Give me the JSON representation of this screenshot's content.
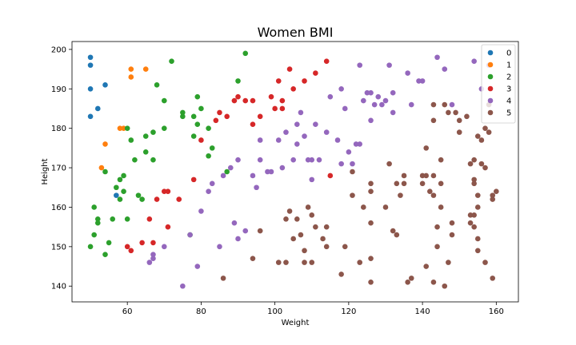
{
  "chart_data": {
    "type": "scatter",
    "title": "Women BMI",
    "xlabel": "Weight",
    "ylabel": "Height",
    "xlim": [
      45,
      166
    ],
    "ylim": [
      136,
      202
    ],
    "xticks": [
      60,
      80,
      100,
      120,
      140,
      160
    ],
    "yticks": [
      140,
      150,
      160,
      170,
      180,
      190,
      200
    ],
    "legend_position": "top-right",
    "series": [
      {
        "name": "0",
        "color": "#1f77b4",
        "points": [
          [
            50,
            198
          ],
          [
            50,
            196
          ],
          [
            50,
            190
          ],
          [
            50,
            183
          ],
          [
            52,
            185
          ],
          [
            54,
            191
          ],
          [
            57,
            163
          ]
        ]
      },
      {
        "name": "1",
        "color": "#ff7f0e",
        "points": [
          [
            53,
            170
          ],
          [
            54,
            176
          ],
          [
            58,
            180
          ],
          [
            59,
            180
          ],
          [
            61,
            195
          ],
          [
            61,
            193
          ],
          [
            65,
            195
          ]
        ]
      },
      {
        "name": "2",
        "color": "#2ca02c",
        "points": [
          [
            50,
            150
          ],
          [
            51,
            153
          ],
          [
            51,
            160
          ],
          [
            52,
            157
          ],
          [
            52,
            156
          ],
          [
            54,
            169
          ],
          [
            54,
            148
          ],
          [
            55,
            151
          ],
          [
            56,
            157
          ],
          [
            57,
            165
          ],
          [
            58,
            167
          ],
          [
            58,
            162
          ],
          [
            59,
            164
          ],
          [
            59,
            168
          ],
          [
            60,
            180
          ],
          [
            60,
            157
          ],
          [
            61,
            177
          ],
          [
            62,
            172
          ],
          [
            63,
            163
          ],
          [
            64,
            162
          ],
          [
            65,
            178
          ],
          [
            65,
            174
          ],
          [
            67,
            179
          ],
          [
            67,
            172
          ],
          [
            68,
            191
          ],
          [
            70,
            187
          ],
          [
            70,
            180
          ],
          [
            72,
            197
          ],
          [
            75,
            184
          ],
          [
            75,
            183
          ],
          [
            78,
            183
          ],
          [
            78,
            178
          ],
          [
            79,
            181
          ],
          [
            79,
            188
          ],
          [
            80,
            185
          ],
          [
            82,
            173
          ],
          [
            82,
            180
          ],
          [
            83,
            175
          ],
          [
            87,
            169
          ],
          [
            90,
            192
          ],
          [
            92,
            199
          ],
          [
            77,
            153
          ]
        ]
      },
      {
        "name": "3",
        "color": "#d62728",
        "points": [
          [
            60,
            150
          ],
          [
            61,
            149
          ],
          [
            64,
            151
          ],
          [
            66,
            157
          ],
          [
            67,
            151
          ],
          [
            68,
            162
          ],
          [
            70,
            164
          ],
          [
            71,
            164
          ],
          [
            71,
            155
          ],
          [
            74,
            162
          ],
          [
            78,
            167
          ],
          [
            80,
            177
          ],
          [
            84,
            182
          ],
          [
            85,
            184
          ],
          [
            87,
            183
          ],
          [
            89,
            187
          ],
          [
            90,
            188
          ],
          [
            92,
            187
          ],
          [
            94,
            187
          ],
          [
            94,
            181
          ],
          [
            96,
            183
          ],
          [
            99,
            188
          ],
          [
            100,
            185
          ],
          [
            101,
            192
          ],
          [
            102,
            187
          ],
          [
            102,
            185
          ],
          [
            104,
            195
          ],
          [
            105,
            190
          ],
          [
            108,
            192
          ],
          [
            111,
            194
          ],
          [
            114,
            197
          ],
          [
            115,
            168
          ]
        ]
      },
      {
        "name": "4",
        "color": "#9467bd",
        "points": [
          [
            66,
            146
          ],
          [
            67,
            148
          ],
          [
            67,
            147
          ],
          [
            70,
            150
          ],
          [
            75,
            140
          ],
          [
            77,
            153
          ],
          [
            79,
            145
          ],
          [
            80,
            159
          ],
          [
            82,
            164
          ],
          [
            83,
            166
          ],
          [
            85,
            150
          ],
          [
            86,
            168
          ],
          [
            88,
            170
          ],
          [
            89,
            156
          ],
          [
            90,
            152
          ],
          [
            90,
            172
          ],
          [
            92,
            154
          ],
          [
            94,
            168
          ],
          [
            95,
            165
          ],
          [
            96,
            172
          ],
          [
            96,
            177
          ],
          [
            98,
            169
          ],
          [
            99,
            169
          ],
          [
            101,
            177
          ],
          [
            102,
            170
          ],
          [
            103,
            179
          ],
          [
            105,
            172
          ],
          [
            106,
            176
          ],
          [
            106,
            181
          ],
          [
            107,
            184
          ],
          [
            108,
            178
          ],
          [
            109,
            172
          ],
          [
            110,
            172
          ],
          [
            110,
            167
          ],
          [
            111,
            181
          ],
          [
            112,
            172
          ],
          [
            114,
            179
          ],
          [
            115,
            188
          ],
          [
            117,
            177
          ],
          [
            118,
            171
          ],
          [
            118,
            190
          ],
          [
            119,
            185
          ],
          [
            120,
            174
          ],
          [
            121,
            171
          ],
          [
            122,
            176
          ],
          [
            123,
            176
          ],
          [
            123,
            196
          ],
          [
            124,
            187
          ],
          [
            125,
            189
          ],
          [
            126,
            189
          ],
          [
            126,
            182
          ],
          [
            127,
            186
          ],
          [
            128,
            188
          ],
          [
            129,
            186
          ],
          [
            130,
            187
          ],
          [
            131,
            196
          ],
          [
            132,
            184
          ],
          [
            132,
            189
          ],
          [
            136,
            194
          ],
          [
            137,
            186
          ],
          [
            139,
            192
          ],
          [
            140,
            192
          ],
          [
            144,
            198
          ],
          [
            146,
            195
          ],
          [
            148,
            186
          ],
          [
            154,
            197
          ],
          [
            156,
            190
          ],
          [
            158,
            196
          ]
        ]
      },
      {
        "name": "5",
        "color": "#8c564b",
        "points": [
          [
            86,
            142
          ],
          [
            94,
            147
          ],
          [
            96,
            154
          ],
          [
            101,
            146
          ],
          [
            103,
            146
          ],
          [
            103,
            157
          ],
          [
            104,
            159
          ],
          [
            105,
            152
          ],
          [
            106,
            157
          ],
          [
            107,
            153
          ],
          [
            108,
            146
          ],
          [
            108,
            149
          ],
          [
            109,
            160
          ],
          [
            110,
            158
          ],
          [
            110,
            146
          ],
          [
            111,
            155
          ],
          [
            113,
            152
          ],
          [
            114,
            155
          ],
          [
            114,
            150
          ],
          [
            118,
            143
          ],
          [
            119,
            150
          ],
          [
            121,
            163
          ],
          [
            121,
            169
          ],
          [
            123,
            146
          ],
          [
            124,
            160
          ],
          [
            126,
            166
          ],
          [
            126,
            164
          ],
          [
            126,
            156
          ],
          [
            126,
            147
          ],
          [
            126,
            141
          ],
          [
            130,
            160
          ],
          [
            131,
            171
          ],
          [
            132,
            154
          ],
          [
            133,
            153
          ],
          [
            133,
            166
          ],
          [
            134,
            163
          ],
          [
            135,
            168
          ],
          [
            135,
            166
          ],
          [
            136,
            141
          ],
          [
            137,
            142
          ],
          [
            140,
            168
          ],
          [
            140,
            166
          ],
          [
            141,
            168
          ],
          [
            141,
            175
          ],
          [
            141,
            145
          ],
          [
            142,
            164
          ],
          [
            143,
            163
          ],
          [
            143,
            182
          ],
          [
            143,
            186
          ],
          [
            143,
            168
          ],
          [
            143,
            141
          ],
          [
            144,
            155
          ],
          [
            144,
            150
          ],
          [
            145,
            172
          ],
          [
            145,
            166
          ],
          [
            145,
            160
          ],
          [
            146,
            140
          ],
          [
            146,
            186
          ],
          [
            147,
            146
          ],
          [
            147,
            184
          ],
          [
            148,
            156
          ],
          [
            148,
            153
          ],
          [
            149,
            184
          ],
          [
            150,
            179
          ],
          [
            150,
            182
          ],
          [
            152,
            183
          ],
          [
            153,
            171
          ],
          [
            153,
            158
          ],
          [
            153,
            156
          ],
          [
            154,
            167
          ],
          [
            154,
            166
          ],
          [
            154,
            172
          ],
          [
            154,
            155
          ],
          [
            154,
            158
          ],
          [
            155,
            152
          ],
          [
            155,
            163
          ],
          [
            155,
            160
          ],
          [
            155,
            178
          ],
          [
            155,
            149
          ],
          [
            156,
            177
          ],
          [
            156,
            171
          ],
          [
            157,
            180
          ],
          [
            157,
            170
          ],
          [
            158,
            186
          ],
          [
            158,
            179
          ],
          [
            159,
            163
          ],
          [
            159,
            162
          ],
          [
            159,
            142
          ],
          [
            160,
            164
          ],
          [
            157,
            146
          ]
        ]
      }
    ]
  }
}
